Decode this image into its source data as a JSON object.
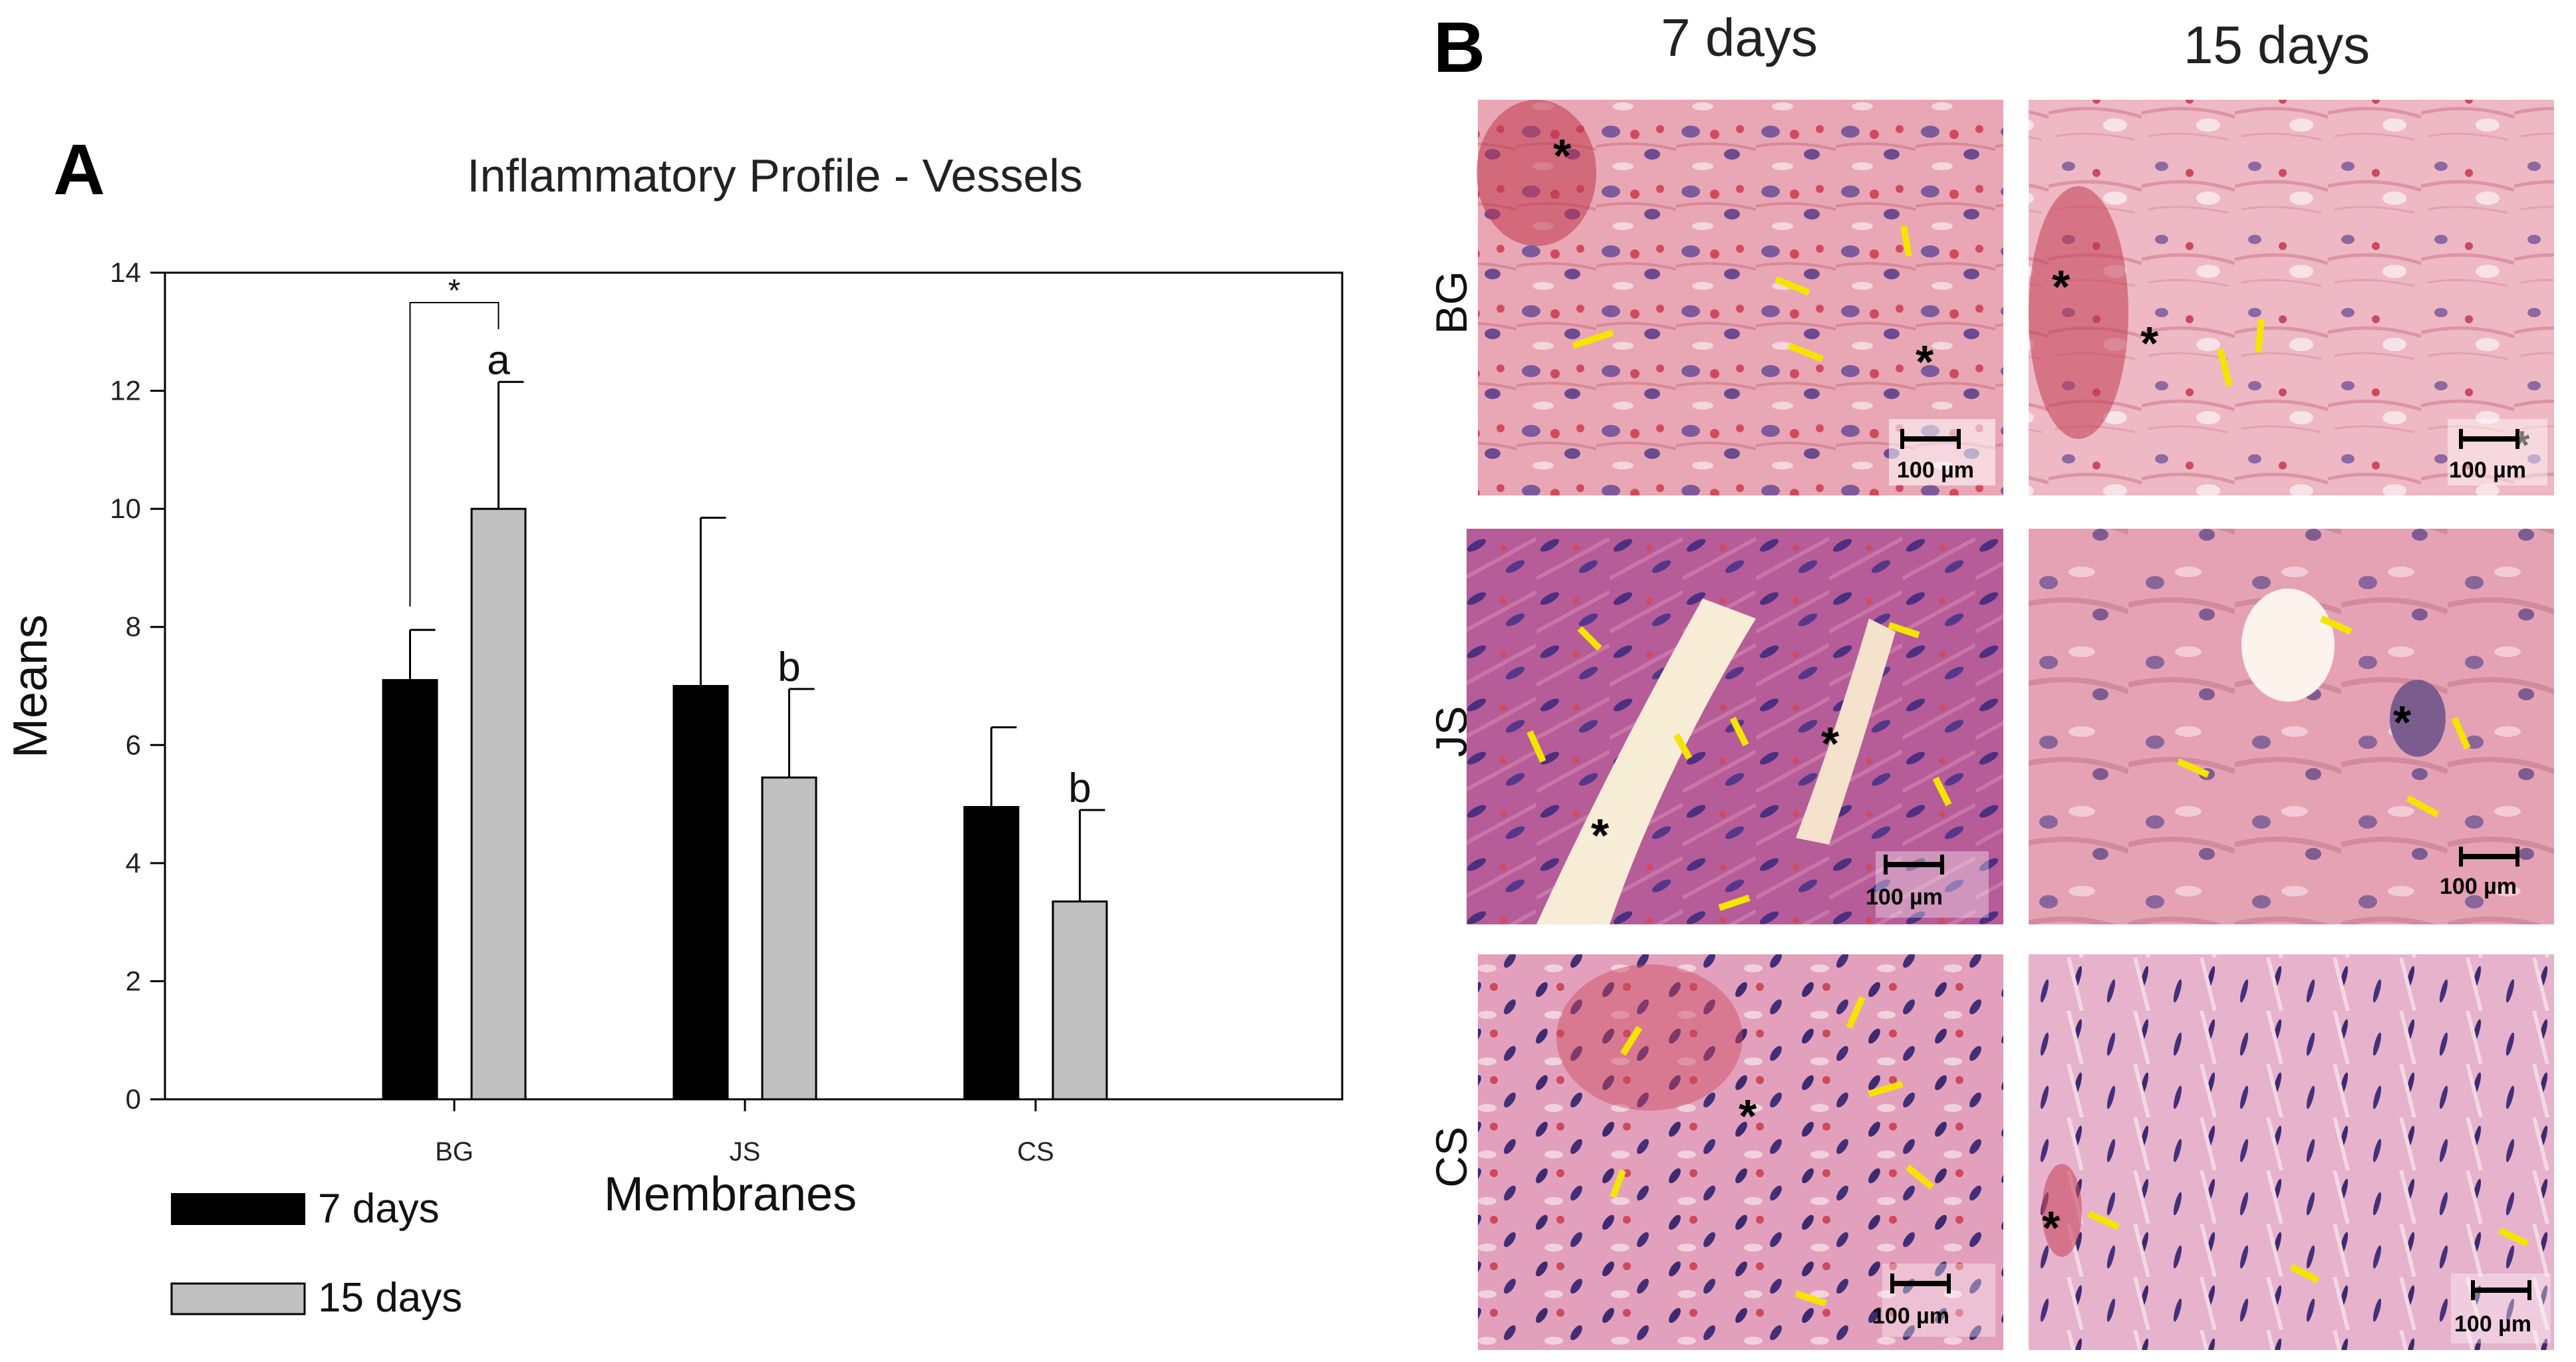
{
  "panels": {
    "a": "A",
    "b": "B"
  },
  "chart_data": {
    "type": "bar",
    "title": "Inflammatory Profile - Vessels",
    "xlabel": "Membranes",
    "ylabel": "Means",
    "ylim": [
      0,
      14
    ],
    "yticks": [
      0,
      2,
      4,
      6,
      8,
      10,
      12,
      14
    ],
    "categories": [
      "BG",
      "JS",
      "CS"
    ],
    "series": [
      {
        "name": "7 days",
        "color": "#000000",
        "values": [
          7.1,
          7.0,
          4.95
        ],
        "errors": [
          0.85,
          2.85,
          1.35
        ]
      },
      {
        "name": "15 days",
        "color": "#c0c0c0",
        "values": [
          10.0,
          5.45,
          3.35
        ],
        "errors": [
          2.15,
          1.5,
          1.55
        ]
      }
    ],
    "bar_labels": [
      {
        "category": "BG",
        "series": "15 days",
        "text": "a"
      },
      {
        "category": "JS",
        "series": "15 days",
        "text": "b"
      },
      {
        "category": "CS",
        "series": "15 days",
        "text": "b"
      }
    ],
    "significance": {
      "category": "BG",
      "text": "*"
    },
    "grid": false,
    "legend_position": "bottom-left"
  },
  "micrographs": {
    "columns": [
      "7 days",
      "15 days"
    ],
    "rows": [
      "BG",
      "JS",
      "CS"
    ],
    "scale_bar": "100 µm",
    "marker": "*"
  }
}
